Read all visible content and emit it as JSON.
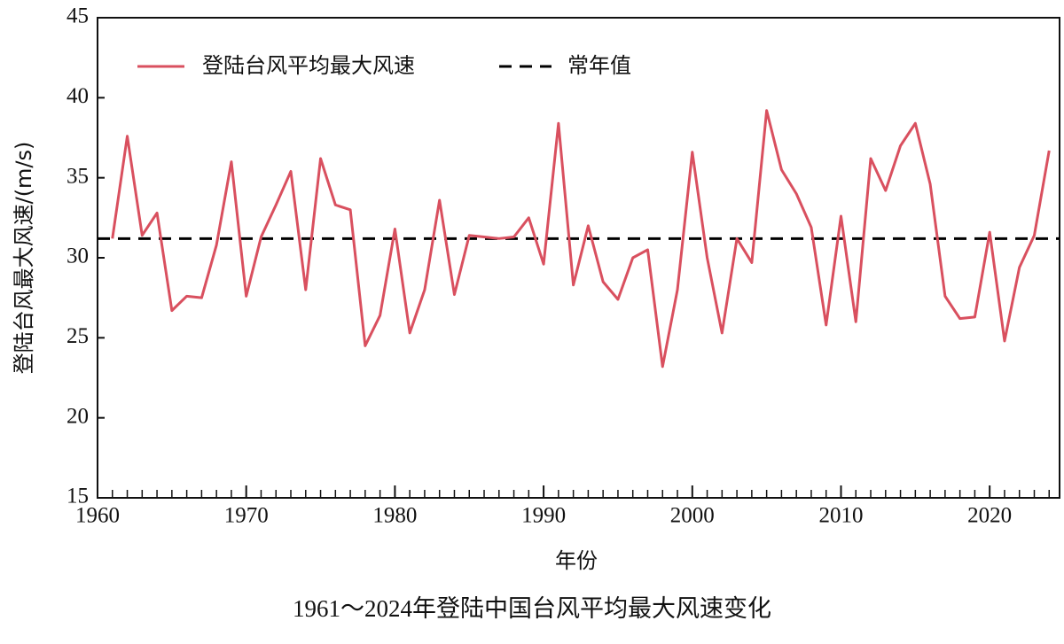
{
  "chart_data": {
    "type": "line",
    "title": "1961～2024年登陆中国台风平均最大风速变化",
    "x_label": "年份",
    "y_label": "登陆台风最大风速/(m/s)",
    "x": [
      1961,
      1962,
      1963,
      1964,
      1965,
      1966,
      1967,
      1968,
      1969,
      1970,
      1971,
      1972,
      1973,
      1974,
      1975,
      1976,
      1977,
      1978,
      1979,
      1980,
      1981,
      1982,
      1983,
      1984,
      1985,
      1986,
      1987,
      1988,
      1989,
      1990,
      1991,
      1992,
      1993,
      1994,
      1995,
      1996,
      1997,
      1998,
      1999,
      2000,
      2001,
      2002,
      2003,
      2004,
      2005,
      2006,
      2007,
      2008,
      2009,
      2010,
      2011,
      2012,
      2013,
      2014,
      2015,
      2016,
      2017,
      2018,
      2019,
      2020,
      2021,
      2022,
      2023,
      2024
    ],
    "series": [
      {
        "name": "登陆台风平均最大风速",
        "color": "#d9505f",
        "values": [
          31.2,
          37.6,
          31.4,
          32.8,
          26.7,
          27.6,
          27.5,
          30.8,
          36.0,
          27.6,
          31.3,
          33.3,
          35.4,
          28.0,
          36.2,
          33.3,
          33.0,
          24.5,
          26.4,
          31.8,
          25.3,
          28.0,
          33.6,
          27.7,
          31.4,
          31.3,
          31.2,
          31.3,
          32.5,
          29.6,
          38.4,
          28.3,
          32.0,
          28.5,
          27.4,
          30.0,
          30.5,
          23.2,
          28.0,
          36.6,
          30.0,
          25.3,
          31.2,
          29.7,
          39.2,
          35.5,
          34.0,
          31.9,
          25.8,
          32.6,
          26.0,
          36.2,
          34.2,
          37.0,
          38.4,
          34.6,
          27.6,
          26.2,
          26.3,
          31.6,
          24.8,
          29.4,
          31.4,
          36.7
        ]
      }
    ],
    "reference_line": {
      "name": "常年值",
      "value": 31.2,
      "color": "#000000"
    },
    "xlim": [
      1960,
      2024.7
    ],
    "xticks": [
      1960,
      1970,
      1980,
      1990,
      2000,
      2010,
      2020
    ],
    "ylim": [
      15,
      45
    ],
    "yticks": [
      15,
      20,
      25,
      30,
      35,
      40,
      45
    ],
    "legend": "upper left"
  }
}
